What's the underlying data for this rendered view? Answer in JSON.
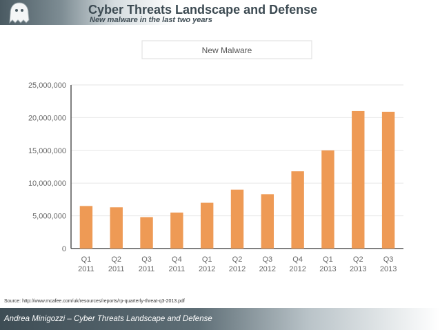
{
  "header": {
    "title": "Cyber Threats Landscape and Defense",
    "subtitle": "New malware in the last two years",
    "logo_icon": "ghost-icon"
  },
  "footer": {
    "source": "Source: http://www.mcafee.com/uk/resources/reports/rp-quarterly-threat-q3-2013.pdf",
    "author_line": "Andrea Minigozzi – Cyber Threats Landscape and Defense"
  },
  "colors": {
    "bar": "#ee9a55",
    "title": "#3c4a52",
    "axis": "#555555"
  },
  "chart_data": {
    "type": "bar",
    "title": "New Malware",
    "xlabel": "",
    "ylabel": "",
    "categories": [
      [
        "Q1",
        "2011"
      ],
      [
        "Q2",
        "2011"
      ],
      [
        "Q3",
        "2011"
      ],
      [
        "Q4",
        "2011"
      ],
      [
        "Q1",
        "2012"
      ],
      [
        "Q2",
        "2012"
      ],
      [
        "Q3",
        "2012"
      ],
      [
        "Q4",
        "2012"
      ],
      [
        "Q1",
        "2013"
      ],
      [
        "Q2",
        "2013"
      ],
      [
        "Q3",
        "2013"
      ]
    ],
    "values": [
      6500000,
      6300000,
      4800000,
      5500000,
      7000000,
      9000000,
      8300000,
      11800000,
      15000000,
      21000000,
      20900000
    ],
    "ylim": [
      0,
      25000000
    ],
    "yticks": [
      0,
      5000000,
      10000000,
      15000000,
      20000000,
      25000000
    ],
    "ytick_labels": [
      "0",
      "5,000,000",
      "10,000,000",
      "15,000,000",
      "20,000,000",
      "25,000,000"
    ],
    "grid": true,
    "legend": "none"
  }
}
